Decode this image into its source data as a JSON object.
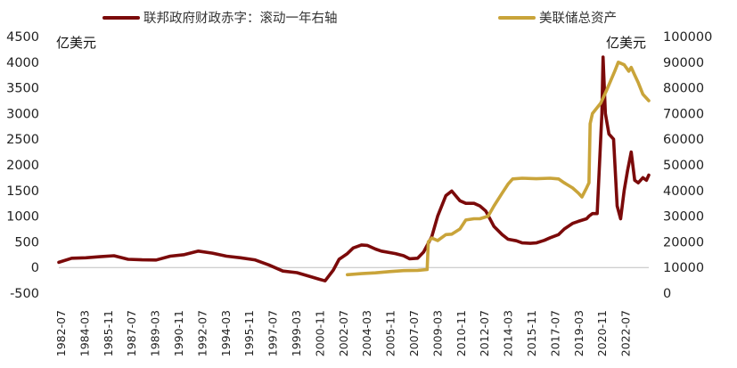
{
  "chart_data": {
    "type": "line",
    "colors": {
      "deficit": "#7b0a0a",
      "assets": "#c9a43a",
      "axis": "#bfbfbf"
    },
    "legend": {
      "placement": "top",
      "deficit_label": "联邦政府财政赤字：滚动一年右轴",
      "assets_label": "美联储总资产"
    },
    "left_axis": {
      "unit": "亿美元",
      "ylim": [
        -500,
        4500
      ],
      "ticks": [
        "4500",
        "4000",
        "3500",
        "3000",
        "2500",
        "2000",
        "1500",
        "1000",
        "500",
        "0",
        "-500"
      ]
    },
    "right_axis": {
      "unit": "亿美元",
      "ylim": [
        0,
        100000
      ],
      "ticks": [
        "100000",
        "90000",
        "80000",
        "70000",
        "60000",
        "50000",
        "40000",
        "30000",
        "20000",
        "10000",
        "0"
      ]
    },
    "x_ticks": [
      "1982-07",
      "1984-03",
      "1985-11",
      "1987-07",
      "1989-03",
      "1990-11",
      "1992-07",
      "1994-03",
      "1995-11",
      "1997-07",
      "1999-03",
      "2000-11",
      "2002-07",
      "2004-03",
      "2005-11",
      "2007-07",
      "2009-03",
      "2010-11",
      "2012-07",
      "2014-03",
      "2015-11",
      "2017-07",
      "2019-03",
      "2020-11",
      "2022-07"
    ],
    "x_range": [
      "1982-07",
      "2024-06"
    ],
    "series": [
      {
        "name": "联邦政府财政赤字：滚动一年右轴",
        "axis": "left",
        "x": [
          "1982-07",
          "1983-06",
          "1984-06",
          "1985-06",
          "1986-06",
          "1987-06",
          "1988-06",
          "1989-06",
          "1990-06",
          "1991-06",
          "1992-06",
          "1993-06",
          "1994-06",
          "1995-06",
          "1996-06",
          "1997-06",
          "1998-06",
          "1999-06",
          "2000-06",
          "2001-01",
          "2001-06",
          "2002-01",
          "2002-06",
          "2003-01",
          "2003-06",
          "2004-01",
          "2004-06",
          "2005-01",
          "2005-06",
          "2006-06",
          "2007-01",
          "2007-06",
          "2008-01",
          "2008-06",
          "2009-01",
          "2009-06",
          "2010-01",
          "2010-06",
          "2011-01",
          "2011-06",
          "2012-01",
          "2012-06",
          "2012-11",
          "2013-06",
          "2014-01",
          "2014-06",
          "2015-01",
          "2015-06",
          "2016-01",
          "2016-06",
          "2017-01",
          "2017-06",
          "2018-01",
          "2018-06",
          "2019-01",
          "2019-06",
          "2020-01",
          "2020-03",
          "2020-06",
          "2020-10",
          "2021-02",
          "2021-03",
          "2021-05",
          "2021-08",
          "2021-12",
          "2022-03",
          "2022-06",
          "2022-09",
          "2022-12",
          "2023-03",
          "2023-06",
          "2023-09",
          "2024-01",
          "2024-04",
          "2024-06"
        ],
        "values": [
          100,
          180,
          190,
          210,
          230,
          160,
          150,
          145,
          220,
          250,
          320,
          280,
          220,
          190,
          150,
          50,
          -70,
          -100,
          -180,
          -230,
          -260,
          -50,
          160,
          270,
          380,
          440,
          430,
          360,
          320,
          270,
          230,
          170,
          180,
          300,
          600,
          1000,
          1400,
          1490,
          1300,
          1250,
          1250,
          1200,
          1100,
          800,
          640,
          550,
          520,
          480,
          470,
          480,
          530,
          580,
          640,
          750,
          860,
          900,
          950,
          1000,
          1050,
          1050,
          3000,
          4100,
          3000,
          2600,
          2500,
          1200,
          950,
          1500,
          1900,
          2250,
          1700,
          1650,
          1750,
          1700,
          1800
        ]
      },
      {
        "name": "美联储总资产",
        "axis": "right",
        "x": [
          "2003-01",
          "2004-01",
          "2005-01",
          "2006-01",
          "2007-01",
          "2008-01",
          "2008-09",
          "2008-10",
          "2009-01",
          "2009-06",
          "2010-01",
          "2010-06",
          "2011-01",
          "2011-06",
          "2012-01",
          "2012-06",
          "2013-01",
          "2013-06",
          "2014-01",
          "2014-06",
          "2014-10",
          "2015-06",
          "2016-06",
          "2017-06",
          "2018-01",
          "2018-06",
          "2019-01",
          "2019-06",
          "2019-09",
          "2020-01",
          "2020-03",
          "2020-04",
          "2020-06",
          "2021-01",
          "2021-06",
          "2022-01",
          "2022-04",
          "2022-09",
          "2023-01",
          "2023-03",
          "2023-06",
          "2023-09",
          "2024-01",
          "2024-06"
        ],
        "values": [
          7200,
          7600,
          7900,
          8400,
          8800,
          8900,
          9200,
          20000,
          21500,
          20500,
          22800,
          23000,
          25000,
          28500,
          29000,
          29000,
          30000,
          34000,
          39000,
          42500,
          44500,
          44800,
          44600,
          44800,
          44500,
          43000,
          41000,
          39000,
          37500,
          41000,
          43000,
          66000,
          70000,
          74000,
          79000,
          86500,
          90000,
          89000,
          86500,
          88000,
          85000,
          82000,
          77500,
          75000
        ]
      }
    ]
  }
}
